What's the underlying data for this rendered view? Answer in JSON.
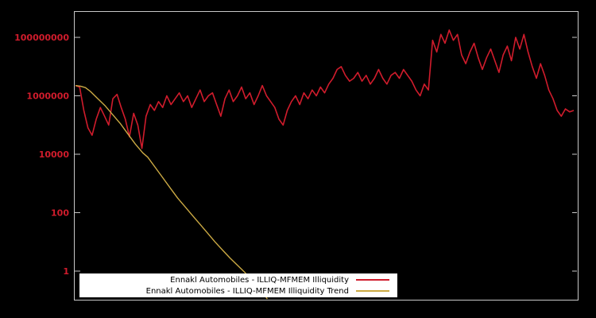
{
  "chart_data": {
    "type": "line",
    "title": "",
    "background": "#000000",
    "border_color": "#c8c8c8",
    "grid": false,
    "y_axis": {
      "scale": "log",
      "ticks": [
        1,
        100,
        10000,
        1000000,
        100000000
      ],
      "tick_labels": [
        "1",
        "100",
        "10000",
        "1000000",
        "100000000"
      ],
      "label_color": "#d01c2c",
      "range": [
        0.1,
        800000000
      ]
    },
    "x_axis": {
      "tick_labels": []
    },
    "legend": {
      "position": "bottom-center",
      "background": "#ffffff",
      "text_color": "#000000"
    },
    "series": [
      {
        "name": "Ennakl Automobiles - ILLIQ-MFMEM Illiquidity",
        "color": "#d01c2c",
        "log10_values": [
          6.35,
          6.3,
          5.5,
          4.9,
          4.65,
          5.2,
          5.6,
          5.3,
          5.0,
          5.9,
          6.05,
          5.6,
          5.2,
          4.6,
          5.4,
          5.0,
          4.2,
          5.3,
          5.7,
          5.5,
          5.8,
          5.6,
          6.0,
          5.7,
          5.9,
          6.1,
          5.8,
          6.0,
          5.6,
          5.9,
          6.2,
          5.8,
          6.0,
          6.1,
          5.7,
          5.3,
          5.9,
          6.2,
          5.8,
          6.0,
          6.3,
          5.9,
          6.1,
          5.7,
          6.0,
          6.35,
          6.0,
          5.8,
          5.6,
          5.2,
          5.0,
          5.5,
          5.8,
          6.0,
          5.7,
          6.1,
          5.9,
          6.2,
          6.0,
          6.3,
          6.1,
          6.4,
          6.6,
          6.9,
          7.0,
          6.7,
          6.5,
          6.6,
          6.8,
          6.5,
          6.7,
          6.4,
          6.6,
          6.9,
          6.6,
          6.4,
          6.7,
          6.8,
          6.6,
          6.9,
          6.7,
          6.5,
          6.2,
          6.0,
          6.4,
          6.2,
          7.9,
          7.5,
          8.1,
          7.8,
          8.25,
          7.9,
          8.1,
          7.4,
          7.1,
          7.5,
          7.8,
          7.3,
          6.9,
          7.3,
          7.6,
          7.2,
          6.8,
          7.4,
          7.7,
          7.2,
          8.0,
          7.6,
          8.1,
          7.5,
          7.0,
          6.6,
          7.1,
          6.7,
          6.2,
          5.9,
          5.5,
          5.3,
          5.55,
          5.45,
          5.5
        ]
      },
      {
        "name": "Ennakl Automobiles - ILLIQ-MFMEM Illiquidity Trend",
        "color": "#ccaa44",
        "points": [
          [
            0,
            6.35
          ],
          [
            0.01,
            6.33
          ],
          [
            0.02,
            6.28
          ],
          [
            0.03,
            6.15
          ],
          [
            0.045,
            5.9
          ],
          [
            0.06,
            5.65
          ],
          [
            0.075,
            5.35
          ],
          [
            0.09,
            5.05
          ],
          [
            0.105,
            4.7
          ],
          [
            0.12,
            4.35
          ],
          [
            0.135,
            4.05
          ],
          [
            0.145,
            3.9
          ],
          [
            0.16,
            3.55
          ],
          [
            0.175,
            3.2
          ],
          [
            0.19,
            2.85
          ],
          [
            0.205,
            2.5
          ],
          [
            0.22,
            2.2
          ],
          [
            0.235,
            1.9
          ],
          [
            0.25,
            1.6
          ],
          [
            0.265,
            1.3
          ],
          [
            0.28,
            1.0
          ],
          [
            0.295,
            0.72
          ],
          [
            0.31,
            0.45
          ],
          [
            0.325,
            0.2
          ],
          [
            0.34,
            -0.05
          ],
          [
            0.355,
            -0.35
          ],
          [
            0.37,
            -0.6
          ],
          [
            0.385,
            -0.95
          ]
        ]
      }
    ]
  }
}
